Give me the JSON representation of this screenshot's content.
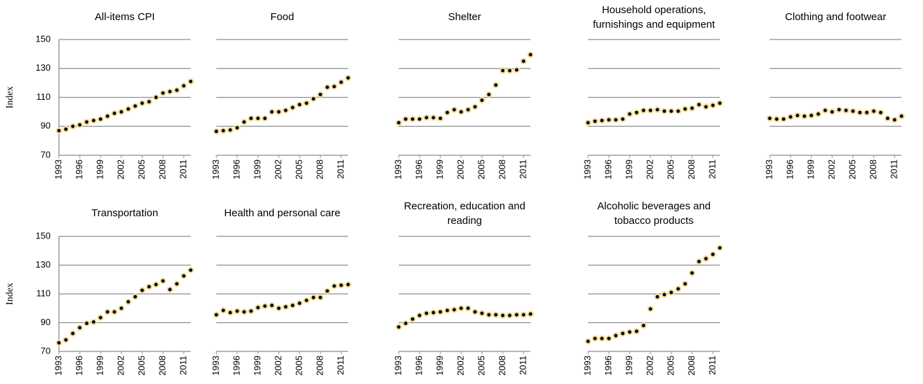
{
  "chart_data": [
    {
      "type": "scatter",
      "title": "All-items CPI",
      "ylabel": "Index",
      "show_yticklabels": true,
      "color": "#000000",
      "edgecolor": "#f3dfa2",
      "x": [
        1993,
        1994,
        1995,
        1996,
        1997,
        1998,
        1999,
        2000,
        2001,
        2002,
        2003,
        2004,
        2005,
        2006,
        2007,
        2008,
        2009,
        2010,
        2011,
        2012
      ],
      "values": [
        87,
        88,
        90,
        91,
        93,
        94,
        95,
        97,
        99,
        100,
        102,
        104,
        106,
        107,
        110,
        113,
        114,
        115,
        118,
        121
      ],
      "xlim": [
        1993,
        2012
      ],
      "xticks": [
        1993,
        1996,
        1999,
        2002,
        2005,
        2008,
        2011
      ],
      "ylim": [
        70,
        150
      ],
      "yticks": [
        70,
        90,
        110,
        130,
        150
      ],
      "grid": true
    },
    {
      "type": "scatter",
      "title": "Food",
      "show_yticklabels": false,
      "color": "#000000",
      "edgecolor": "#f3dfa2",
      "x": [
        1993,
        1994,
        1995,
        1996,
        1997,
        1998,
        1999,
        2000,
        2001,
        2002,
        2003,
        2004,
        2005,
        2006,
        2007,
        2008,
        2009,
        2010,
        2011,
        2012
      ],
      "values": [
        86.5,
        87,
        87.5,
        89,
        93,
        95.5,
        95.5,
        95.5,
        100,
        100,
        101,
        103,
        105,
        106,
        109,
        112,
        117,
        117.5,
        120.5,
        123.5
      ],
      "xlim": [
        1993,
        2012
      ],
      "xticks": [
        1993,
        1996,
        1999,
        2002,
        2005,
        2008,
        2011
      ],
      "ylim": [
        70,
        150
      ],
      "yticks": [
        70,
        90,
        110,
        130,
        150
      ],
      "grid": true
    },
    {
      "type": "scatter",
      "title": "Shelter",
      "show_yticklabels": false,
      "color": "#000000",
      "edgecolor": "#f3dfa2",
      "x": [
        1993,
        1994,
        1995,
        1996,
        1997,
        1998,
        1999,
        2000,
        2001,
        2002,
        2003,
        2004,
        2005,
        2006,
        2007,
        2008,
        2009,
        2010,
        2011,
        2012
      ],
      "values": [
        92.5,
        95,
        95,
        95,
        96,
        96,
        95.5,
        99.5,
        101.5,
        100,
        101.5,
        103.5,
        108,
        112,
        118.5,
        128.5,
        128.5,
        129,
        135,
        139.5
      ],
      "xlim": [
        1993,
        2012
      ],
      "xticks": [
        1993,
        1996,
        1999,
        2002,
        2005,
        2008,
        2011
      ],
      "ylim": [
        70,
        150
      ],
      "yticks": [
        70,
        90,
        110,
        130,
        150
      ],
      "grid": true
    },
    {
      "type": "scatter",
      "title": "Household operations, furnishings and equipment",
      "show_yticklabels": false,
      "color": "#000000",
      "edgecolor": "#f3dfa2",
      "x": [
        1993,
        1994,
        1995,
        1996,
        1997,
        1998,
        1999,
        2000,
        2001,
        2002,
        2003,
        2004,
        2005,
        2006,
        2007,
        2008,
        2009,
        2010,
        2011,
        2012
      ],
      "values": [
        92.5,
        93.5,
        94,
        94.5,
        94.5,
        95,
        98.5,
        99.5,
        101,
        101,
        101.5,
        100.5,
        100.5,
        100.5,
        102,
        102.5,
        105,
        103.5,
        104.5,
        106
      ],
      "xlim": [
        1993,
        2012
      ],
      "xticks": [
        1993,
        1996,
        1999,
        2002,
        2005,
        2008,
        2011
      ],
      "ylim": [
        70,
        150
      ],
      "yticks": [
        70,
        90,
        110,
        130,
        150
      ],
      "grid": true
    },
    {
      "type": "scatter",
      "title": "Clothing and footwear",
      "show_yticklabels": false,
      "color": "#000000",
      "edgecolor": "#f3dfa2",
      "x": [
        1993,
        1994,
        1995,
        1996,
        1997,
        1998,
        1999,
        2000,
        2001,
        2002,
        2003,
        2004,
        2005,
        2006,
        2007,
        2008,
        2009,
        2010,
        2011,
        2012
      ],
      "values": [
        95.5,
        95,
        95,
        96.5,
        97.5,
        97,
        97.5,
        98.5,
        101,
        100,
        101.5,
        101,
        100.5,
        99.5,
        99.5,
        100.5,
        99.5,
        95.5,
        94.5,
        97
      ],
      "xlim": [
        1993,
        2012
      ],
      "xticks": [
        1993,
        1996,
        1999,
        2002,
        2005,
        2008,
        2011
      ],
      "ylim": [
        70,
        150
      ],
      "yticks": [
        70,
        90,
        110,
        130,
        150
      ],
      "grid": true
    },
    {
      "type": "scatter",
      "title": "Transportation",
      "ylabel": "Index",
      "show_yticklabels": true,
      "color": "#000000",
      "edgecolor": "#f3dfa2",
      "x": [
        1993,
        1994,
        1995,
        1996,
        1997,
        1998,
        1999,
        2000,
        2001,
        2002,
        2003,
        2004,
        2005,
        2006,
        2007,
        2008,
        2009,
        2010,
        2011,
        2012
      ],
      "values": [
        76,
        78,
        82.5,
        86.5,
        89.5,
        90.5,
        93.5,
        97.5,
        97.5,
        100,
        104.5,
        108,
        112.5,
        115,
        116.5,
        119,
        113,
        117,
        122.5,
        126.5
      ],
      "xlim": [
        1993,
        2012
      ],
      "xticks": [
        1993,
        1996,
        1999,
        2002,
        2005,
        2008,
        2011
      ],
      "ylim": [
        70,
        150
      ],
      "yticks": [
        70,
        90,
        110,
        130,
        150
      ],
      "grid": true
    },
    {
      "type": "scatter",
      "title": "Health and personal care",
      "show_yticklabels": false,
      "color": "#000000",
      "edgecolor": "#f3dfa2",
      "x": [
        1993,
        1994,
        1995,
        1996,
        1997,
        1998,
        1999,
        2000,
        2001,
        2002,
        2003,
        2004,
        2005,
        2006,
        2007,
        2008,
        2009,
        2010,
        2011,
        2012
      ],
      "values": [
        95.5,
        98.5,
        97,
        98,
        97.5,
        98,
        100.5,
        101.5,
        102,
        100,
        101,
        102,
        103.5,
        105.5,
        107.5,
        107.5,
        112,
        115.5,
        116,
        116.5
      ],
      "xlim": [
        1993,
        2012
      ],
      "xticks": [
        1993,
        1996,
        1999,
        2002,
        2005,
        2008,
        2011
      ],
      "ylim": [
        70,
        150
      ],
      "yticks": [
        70,
        90,
        110,
        130,
        150
      ],
      "grid": true
    },
    {
      "type": "scatter",
      "title": "Recreation, education and reading",
      "show_yticklabels": false,
      "color": "#000000",
      "edgecolor": "#f3dfa2",
      "x": [
        1993,
        1994,
        1995,
        1996,
        1997,
        1998,
        1999,
        2000,
        2001,
        2002,
        2003,
        2004,
        2005,
        2006,
        2007,
        2008,
        2009,
        2010,
        2011,
        2012
      ],
      "values": [
        87,
        89.5,
        92.5,
        95,
        96.5,
        97,
        97.5,
        98.5,
        99,
        100,
        100,
        97.5,
        96.5,
        95.5,
        95.5,
        95,
        95,
        95.5,
        95.5,
        96
      ],
      "xlim": [
        1993,
        2012
      ],
      "xticks": [
        1993,
        1996,
        1999,
        2002,
        2005,
        2008,
        2011
      ],
      "ylim": [
        70,
        150
      ],
      "yticks": [
        70,
        90,
        110,
        130,
        150
      ],
      "grid": true
    },
    {
      "type": "scatter",
      "title": "Alcoholic beverages and tobacco products",
      "show_yticklabels": false,
      "color": "#000000",
      "edgecolor": "#f3dfa2",
      "x": [
        1993,
        1994,
        1995,
        1996,
        1997,
        1998,
        1999,
        2000,
        2001,
        2002,
        2003,
        2004,
        2005,
        2006,
        2007,
        2008,
        2009,
        2010,
        2011,
        2012
      ],
      "values": [
        77,
        79,
        79,
        79,
        81,
        82.5,
        83.5,
        84,
        88,
        99.5,
        108,
        109.5,
        111,
        113.5,
        117,
        124.5,
        132.5,
        134.5,
        137.5,
        142
      ],
      "xlim": [
        1993,
        2012
      ],
      "xticks": [
        1993,
        1996,
        1999,
        2002,
        2005,
        2008,
        2011
      ],
      "ylim": [
        70,
        150
      ],
      "yticks": [
        70,
        90,
        110,
        130,
        150
      ],
      "grid": true
    }
  ]
}
